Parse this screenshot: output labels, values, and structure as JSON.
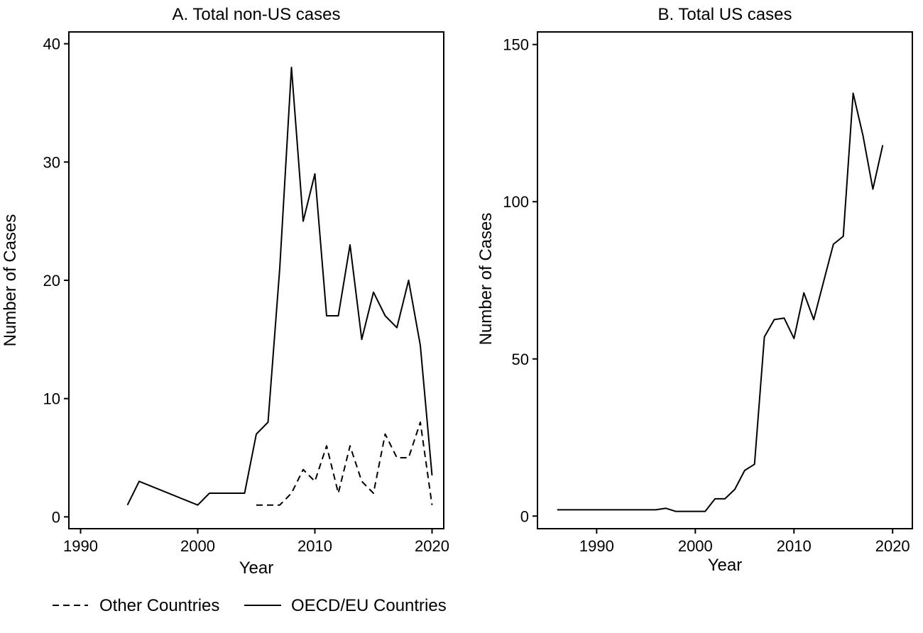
{
  "chart_data": [
    {
      "type": "line",
      "title": "A. Total non-US cases",
      "xlabel": "Year",
      "ylabel": "Number of Cases",
      "xlim": [
        1989,
        2021
      ],
      "ylim": [
        -1,
        41
      ],
      "xticks": [
        1990,
        2000,
        2010,
        2020
      ],
      "yticks": [
        0,
        10,
        20,
        30,
        40
      ],
      "grid": false,
      "series": [
        {
          "name": "OECD/EU Countries",
          "style": "solid",
          "x": [
            1994,
            1995,
            2000,
            2001,
            2002,
            2003,
            2004,
            2005,
            2006,
            2007,
            2008,
            2009,
            2010,
            2011,
            2012,
            2013,
            2014,
            2015,
            2016,
            2017,
            2018,
            2019,
            2020
          ],
          "y": [
            1,
            3,
            1,
            2,
            2,
            2,
            2,
            7,
            8,
            21,
            38,
            25,
            29,
            17,
            17,
            23,
            15,
            19,
            17,
            16,
            20,
            14.5,
            3.5
          ]
        },
        {
          "name": "Other Countries",
          "style": "dashed",
          "x": [
            2005,
            2006,
            2007,
            2008,
            2009,
            2010,
            2011,
            2012,
            2013,
            2014,
            2015,
            2016,
            2017,
            2018,
            2019,
            2020
          ],
          "y": [
            1,
            1,
            1,
            2,
            4,
            3,
            6,
            2,
            6,
            3,
            2,
            7,
            5,
            5,
            8,
            1
          ]
        }
      ]
    },
    {
      "type": "line",
      "title": "B. Total US cases",
      "xlabel": "Year",
      "ylabel": "Number of Cases",
      "xlim": [
        1984,
        2022
      ],
      "ylim": [
        -4,
        154
      ],
      "xticks": [
        1990,
        2000,
        2010,
        2020
      ],
      "yticks": [
        0,
        50,
        100,
        150
      ],
      "grid": false,
      "series": [
        {
          "style": "solid",
          "x": [
            1986,
            1996,
            1997,
            1998,
            2001,
            2002,
            2003,
            2004,
            2005,
            2006,
            2007,
            2008,
            2009,
            2010,
            2011,
            2012,
            2013,
            2014,
            2015,
            2016,
            2017,
            2018,
            2019
          ],
          "y": [
            2,
            2,
            2.5,
            1.5,
            1.5,
            5.5,
            5.5,
            8.5,
            14.5,
            16.5,
            57,
            62.5,
            63,
            56.5,
            71,
            62.5,
            74.5,
            86.5,
            89,
            134.5,
            121,
            104,
            118
          ]
        }
      ]
    }
  ],
  "legend": {
    "placement": "bottom-left",
    "items": [
      "Other Countries",
      "OECD/EU Countries"
    ]
  }
}
